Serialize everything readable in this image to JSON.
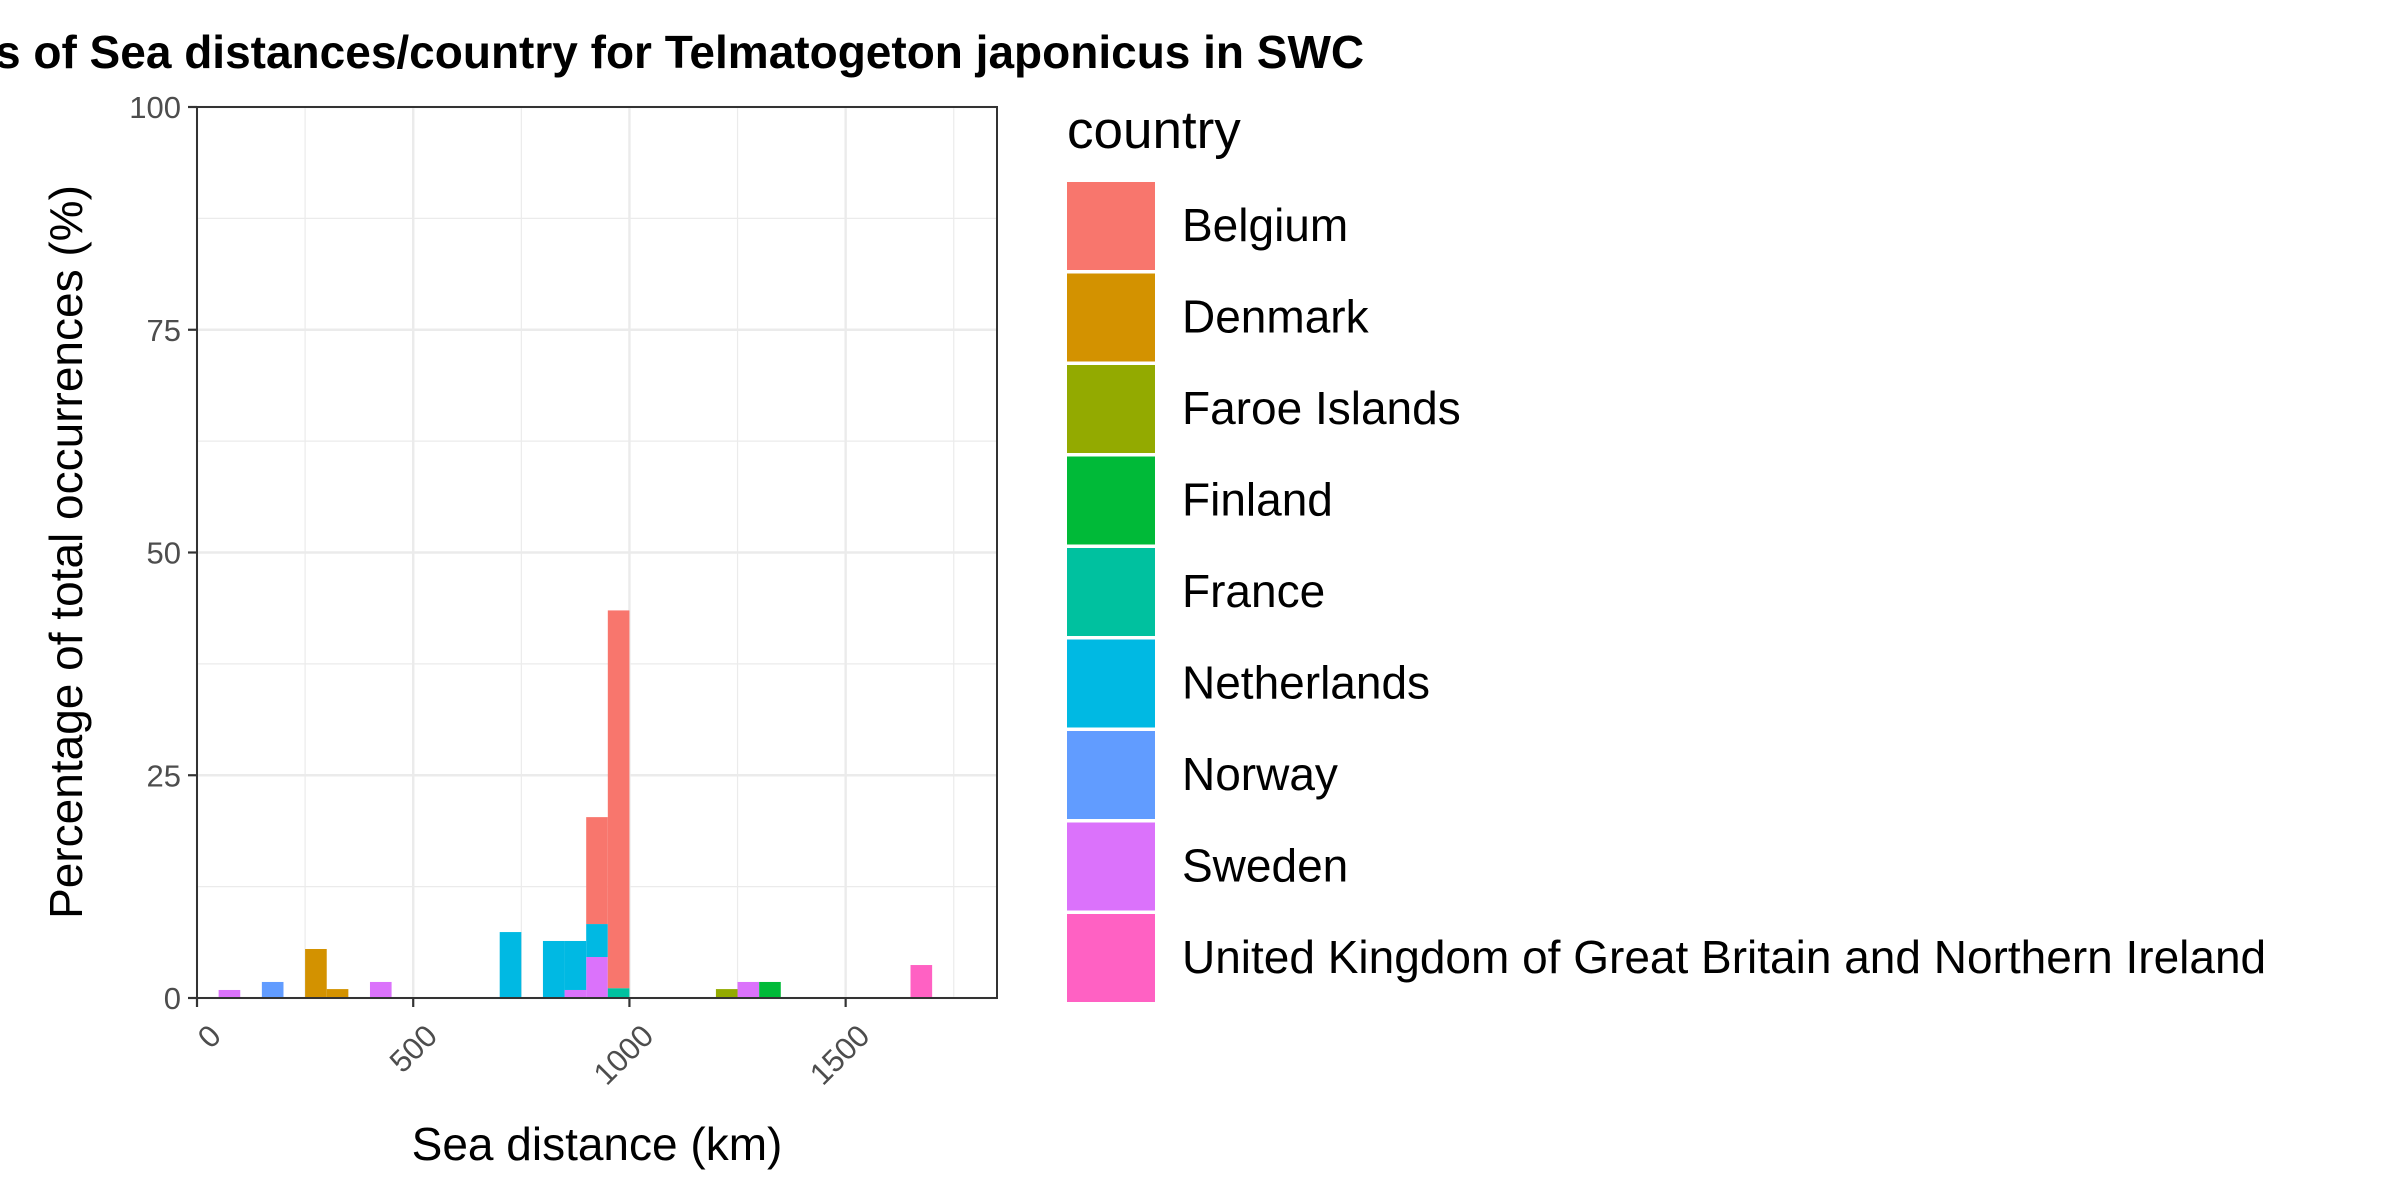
{
  "chart_data": {
    "type": "bar",
    "title": "s of Sea distances/country for Telmatogeton japonicus in SWC",
    "xlabel": "Sea distance (km)",
    "ylabel": "Percentage of total occurrences (%)",
    "xlim": [
      0,
      1850
    ],
    "ylim": [
      0,
      100
    ],
    "x_ticks": [
      0,
      500,
      1000,
      1500
    ],
    "x_tick_labels": [
      "0",
      "500",
      "1000",
      "1500"
    ],
    "y_ticks": [
      0,
      25,
      50,
      75,
      100
    ],
    "y_tick_labels": [
      "0",
      "25",
      "50",
      "75",
      "100"
    ],
    "bin_width": 50,
    "stacked": true,
    "grid": true,
    "legend_position": "right",
    "legend_title": "country",
    "series": [
      {
        "name": "Belgium",
        "color": "#F8766D",
        "bins": [
          {
            "x0": 900,
            "x1": 950,
            "value": 12
          },
          {
            "x0": 950,
            "x1": 1000,
            "value": 42.4
          }
        ]
      },
      {
        "name": "Denmark",
        "color": "#D39200",
        "bins": [
          {
            "x0": 250,
            "x1": 300,
            "value": 5.5
          },
          {
            "x0": 300,
            "x1": 350,
            "value": 1
          }
        ]
      },
      {
        "name": "Faroe Islands",
        "color": "#93AA00",
        "bins": [
          {
            "x0": 1200,
            "x1": 1250,
            "value": 1
          }
        ]
      },
      {
        "name": "Finland",
        "color": "#00BA38",
        "bins": [
          {
            "x0": 1300,
            "x1": 1350,
            "value": 1.8
          }
        ]
      },
      {
        "name": "France",
        "color": "#00C19F",
        "bins": [
          {
            "x0": 950,
            "x1": 1000,
            "value": 1.1
          }
        ]
      },
      {
        "name": "Netherlands",
        "color": "#00B9E3",
        "bins": [
          {
            "x0": 700,
            "x1": 750,
            "value": 7.4
          },
          {
            "x0": 800,
            "x1": 850,
            "value": 6.4
          },
          {
            "x0": 850,
            "x1": 900,
            "value": 5.5
          },
          {
            "x0": 900,
            "x1": 950,
            "value": 3.7
          }
        ]
      },
      {
        "name": "Norway",
        "color": "#619CFF",
        "bins": [
          {
            "x0": 150,
            "x1": 200,
            "value": 1.8
          }
        ]
      },
      {
        "name": "Sweden",
        "color": "#DB72FB",
        "bins": [
          {
            "x0": 50,
            "x1": 100,
            "value": 0.9
          },
          {
            "x0": 400,
            "x1": 450,
            "value": 1.8
          },
          {
            "x0": 850,
            "x1": 900,
            "value": 0.9
          },
          {
            "x0": 900,
            "x1": 950,
            "value": 4.6
          },
          {
            "x0": 1250,
            "x1": 1300,
            "value": 1.8
          }
        ]
      },
      {
        "name": "United Kingdom of Great Britain and Northern Ireland",
        "color": "#FF61C3",
        "bins": [
          {
            "x0": 1650,
            "x1": 1700,
            "value": 3.7
          }
        ]
      }
    ],
    "stack_order": [
      "United Kingdom of Great Britain and Northern Ireland",
      "Sweden",
      "Norway",
      "Netherlands",
      "France",
      "Finland",
      "Faroe Islands",
      "Denmark",
      "Belgium"
    ]
  }
}
